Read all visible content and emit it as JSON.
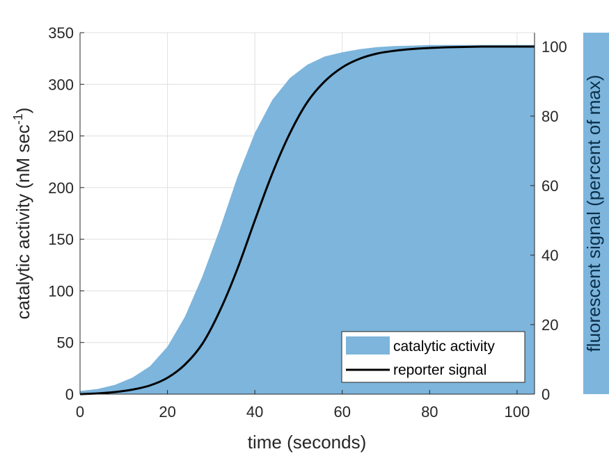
{
  "chart_data": {
    "type": "area",
    "xlabel": "time (seconds)",
    "ylabel_left": "catalytic activity (nM sec",
    "ylabel_left_sup": "-1",
    "ylabel_left_close": ")",
    "ylabel_right": "fluorescent signal (percent of max)",
    "xlim": [
      0,
      104
    ],
    "ylim_left": [
      0,
      350
    ],
    "ylim_right": [
      0,
      104
    ],
    "xticks": [
      0,
      20,
      40,
      60,
      80,
      100
    ],
    "yticks_left": [
      0,
      50,
      100,
      150,
      200,
      250,
      300,
      350
    ],
    "yticks_right": [
      0,
      20,
      40,
      60,
      80,
      100
    ],
    "grid": true,
    "legend_position": "bottom-right",
    "series": [
      {
        "name": "catalytic activity",
        "kind": "area",
        "axis": "left",
        "color": "#7DB5DC",
        "x": [
          0,
          4,
          8,
          12,
          16,
          20,
          24,
          28,
          32,
          36,
          40,
          44,
          48,
          52,
          56,
          60,
          64,
          68,
          72,
          76,
          80,
          84,
          88,
          92,
          96,
          100,
          104
        ],
        "y": [
          3,
          5,
          9,
          16,
          27,
          46,
          75,
          114,
          160,
          210,
          253,
          285,
          306,
          319,
          327,
          331,
          334,
          336,
          337,
          337.5,
          338,
          338,
          338,
          338,
          338,
          338,
          338
        ]
      },
      {
        "name": "reporter signal",
        "kind": "line",
        "axis": "right",
        "color": "#000000",
        "x": [
          0,
          4,
          8,
          12,
          16,
          20,
          24,
          28,
          32,
          36,
          40,
          44,
          48,
          52,
          56,
          60,
          64,
          68,
          72,
          76,
          80,
          84,
          88,
          92,
          96,
          100,
          104
        ],
        "y": [
          0,
          0.2,
          0.6,
          1.3,
          2.5,
          4.7,
          8.5,
          14.5,
          24,
          36,
          50,
          63.5,
          75,
          84,
          90,
          94,
          96.5,
          98,
          98.8,
          99.3,
          99.6,
          99.8,
          99.9,
          100,
          100,
          100,
          100
        ]
      }
    ]
  }
}
